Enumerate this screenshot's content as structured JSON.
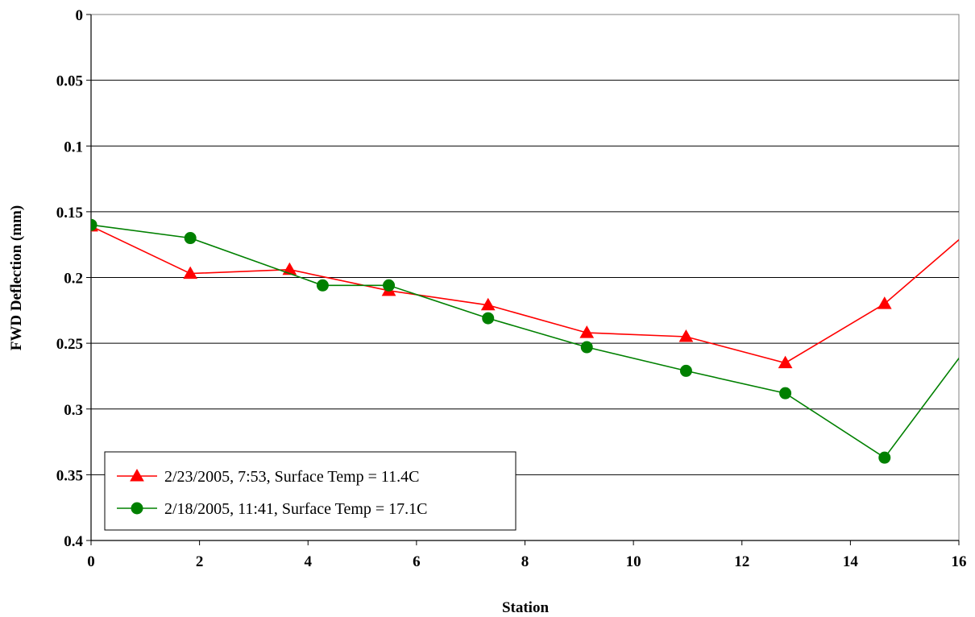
{
  "chart_data": {
    "type": "line",
    "title": "",
    "xlabel": "Station",
    "ylabel": "FWD Deflection (mm)",
    "xlim": [
      0,
      16
    ],
    "ylim": [
      0,
      0.4
    ],
    "y_inverted": true,
    "x_ticks": [
      "0",
      "2",
      "4",
      "6",
      "8",
      "10",
      "12",
      "14",
      "16"
    ],
    "y_ticks": [
      "0",
      "0.05",
      "0.1",
      "0.15",
      "0.2",
      "0.25",
      "0.3",
      "0.35",
      "0.4"
    ],
    "grid": "horizontal",
    "legend_position": "bottom-left",
    "series": [
      {
        "name": "2/23/2005, 7:53, Surface Temp = 11.4C",
        "color": "#ff0000",
        "marker": "triangle",
        "x": [
          0,
          1.83,
          3.66,
          5.49,
          7.32,
          9.14,
          10.97,
          12.8,
          14.63,
          16.46
        ],
        "y": [
          0.161,
          0.197,
          0.194,
          0.21,
          0.221,
          0.242,
          0.245,
          0.265,
          0.22,
          0.155
        ]
      },
      {
        "name": "2/18/2005, 11:41, Surface Temp = 17.1C",
        "color": "#008000",
        "marker": "circle",
        "x": [
          0,
          1.83,
          4.27,
          5.49,
          7.32,
          9.14,
          10.97,
          12.8,
          14.63,
          16.46
        ],
        "y": [
          0.16,
          0.17,
          0.206,
          0.206,
          0.231,
          0.253,
          0.271,
          0.288,
          0.337,
          0.236
        ]
      }
    ]
  }
}
